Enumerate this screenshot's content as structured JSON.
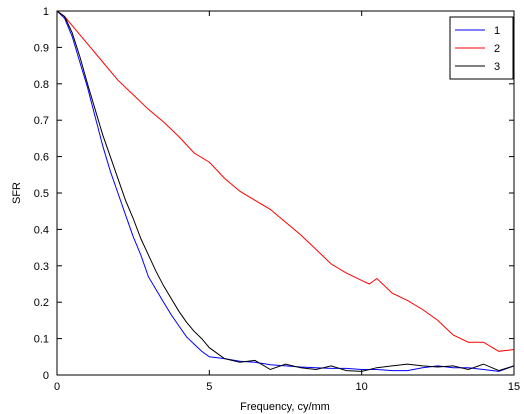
{
  "chart_data": {
    "type": "line",
    "title": "",
    "xlabel": "Frequency, cy/mm",
    "ylabel": "SFR",
    "xlim": [
      0,
      15
    ],
    "ylim": [
      0,
      1
    ],
    "xticks": [
      0,
      5,
      10,
      15
    ],
    "yticks": [
      0,
      0.1,
      0.2,
      0.3,
      0.4,
      0.5,
      0.6,
      0.7,
      0.8,
      0.9,
      1
    ],
    "grid": false,
    "legend_position": "top-right",
    "series": [
      {
        "name": "1",
        "color": "#0000ff",
        "points": [
          [
            0,
            1
          ],
          [
            0.25,
            0.98
          ],
          [
            0.5,
            0.93
          ],
          [
            0.75,
            0.86
          ],
          [
            1,
            0.79
          ],
          [
            1.25,
            0.71
          ],
          [
            1.5,
            0.63
          ],
          [
            1.75,
            0.56
          ],
          [
            2,
            0.5
          ],
          [
            2.25,
            0.44
          ],
          [
            2.5,
            0.38
          ],
          [
            2.75,
            0.33
          ],
          [
            3,
            0.27
          ],
          [
            3.25,
            0.235
          ],
          [
            3.5,
            0.2
          ],
          [
            3.75,
            0.165
          ],
          [
            4,
            0.135
          ],
          [
            4.25,
            0.105
          ],
          [
            4.5,
            0.085
          ],
          [
            4.75,
            0.065
          ],
          [
            5,
            0.05
          ],
          [
            5.5,
            0.045
          ],
          [
            6,
            0.038
          ],
          [
            6.5,
            0.035
          ],
          [
            7,
            0.028
          ],
          [
            7.5,
            0.025
          ],
          [
            8,
            0.022
          ],
          [
            8.5,
            0.02
          ],
          [
            9,
            0.018
          ],
          [
            9.5,
            0.018
          ],
          [
            10,
            0.015
          ],
          [
            10.5,
            0.015
          ],
          [
            11,
            0.012
          ],
          [
            11.5,
            0.012
          ],
          [
            12,
            0.02
          ],
          [
            12.5,
            0.025
          ],
          [
            13,
            0.02
          ],
          [
            13.5,
            0.02
          ],
          [
            14,
            0.015
          ],
          [
            14.5,
            0.01
          ],
          [
            15,
            0.025
          ]
        ]
      },
      {
        "name": "2",
        "color": "#ff0000",
        "points": [
          [
            0,
            1
          ],
          [
            0.25,
            0.985
          ],
          [
            0.5,
            0.96
          ],
          [
            0.75,
            0.935
          ],
          [
            1,
            0.91
          ],
          [
            1.5,
            0.86
          ],
          [
            2,
            0.81
          ],
          [
            2.5,
            0.77
          ],
          [
            3,
            0.73
          ],
          [
            3.5,
            0.695
          ],
          [
            4,
            0.655
          ],
          [
            4.5,
            0.61
          ],
          [
            5,
            0.585
          ],
          [
            5.5,
            0.54
          ],
          [
            6,
            0.505
          ],
          [
            6.5,
            0.48
          ],
          [
            7,
            0.455
          ],
          [
            7.5,
            0.42
          ],
          [
            8,
            0.385
          ],
          [
            8.5,
            0.345
          ],
          [
            9,
            0.305
          ],
          [
            9.5,
            0.28
          ],
          [
            10,
            0.26
          ],
          [
            10.25,
            0.25
          ],
          [
            10.5,
            0.265
          ],
          [
            11,
            0.225
          ],
          [
            11.5,
            0.205
          ],
          [
            12,
            0.18
          ],
          [
            12.5,
            0.15
          ],
          [
            13,
            0.11
          ],
          [
            13.5,
            0.09
          ],
          [
            14,
            0.09
          ],
          [
            14.5,
            0.065
          ],
          [
            15,
            0.07
          ]
        ]
      },
      {
        "name": "3",
        "color": "#000000",
        "points": [
          [
            0,
            1
          ],
          [
            0.25,
            0.985
          ],
          [
            0.5,
            0.94
          ],
          [
            0.75,
            0.875
          ],
          [
            1,
            0.8
          ],
          [
            1.25,
            0.73
          ],
          [
            1.5,
            0.66
          ],
          [
            1.75,
            0.6
          ],
          [
            2,
            0.54
          ],
          [
            2.25,
            0.48
          ],
          [
            2.5,
            0.43
          ],
          [
            2.75,
            0.375
          ],
          [
            3,
            0.33
          ],
          [
            3.25,
            0.285
          ],
          [
            3.5,
            0.245
          ],
          [
            3.75,
            0.21
          ],
          [
            4,
            0.175
          ],
          [
            4.25,
            0.145
          ],
          [
            4.5,
            0.12
          ],
          [
            4.75,
            0.1
          ],
          [
            5,
            0.075
          ],
          [
            5.5,
            0.045
          ],
          [
            6,
            0.035
          ],
          [
            6.5,
            0.04
          ],
          [
            7,
            0.015
          ],
          [
            7.5,
            0.03
          ],
          [
            8,
            0.02
          ],
          [
            8.5,
            0.015
          ],
          [
            9,
            0.025
          ],
          [
            9.5,
            0.012
          ],
          [
            10,
            0.01
          ],
          [
            10.5,
            0.02
          ],
          [
            11,
            0.025
          ],
          [
            11.5,
            0.03
          ],
          [
            12,
            0.025
          ],
          [
            12.5,
            0.022
          ],
          [
            13,
            0.025
          ],
          [
            13.5,
            0.015
          ],
          [
            14,
            0.03
          ],
          [
            14.5,
            0.012
          ],
          [
            15,
            0.025
          ]
        ]
      }
    ]
  }
}
